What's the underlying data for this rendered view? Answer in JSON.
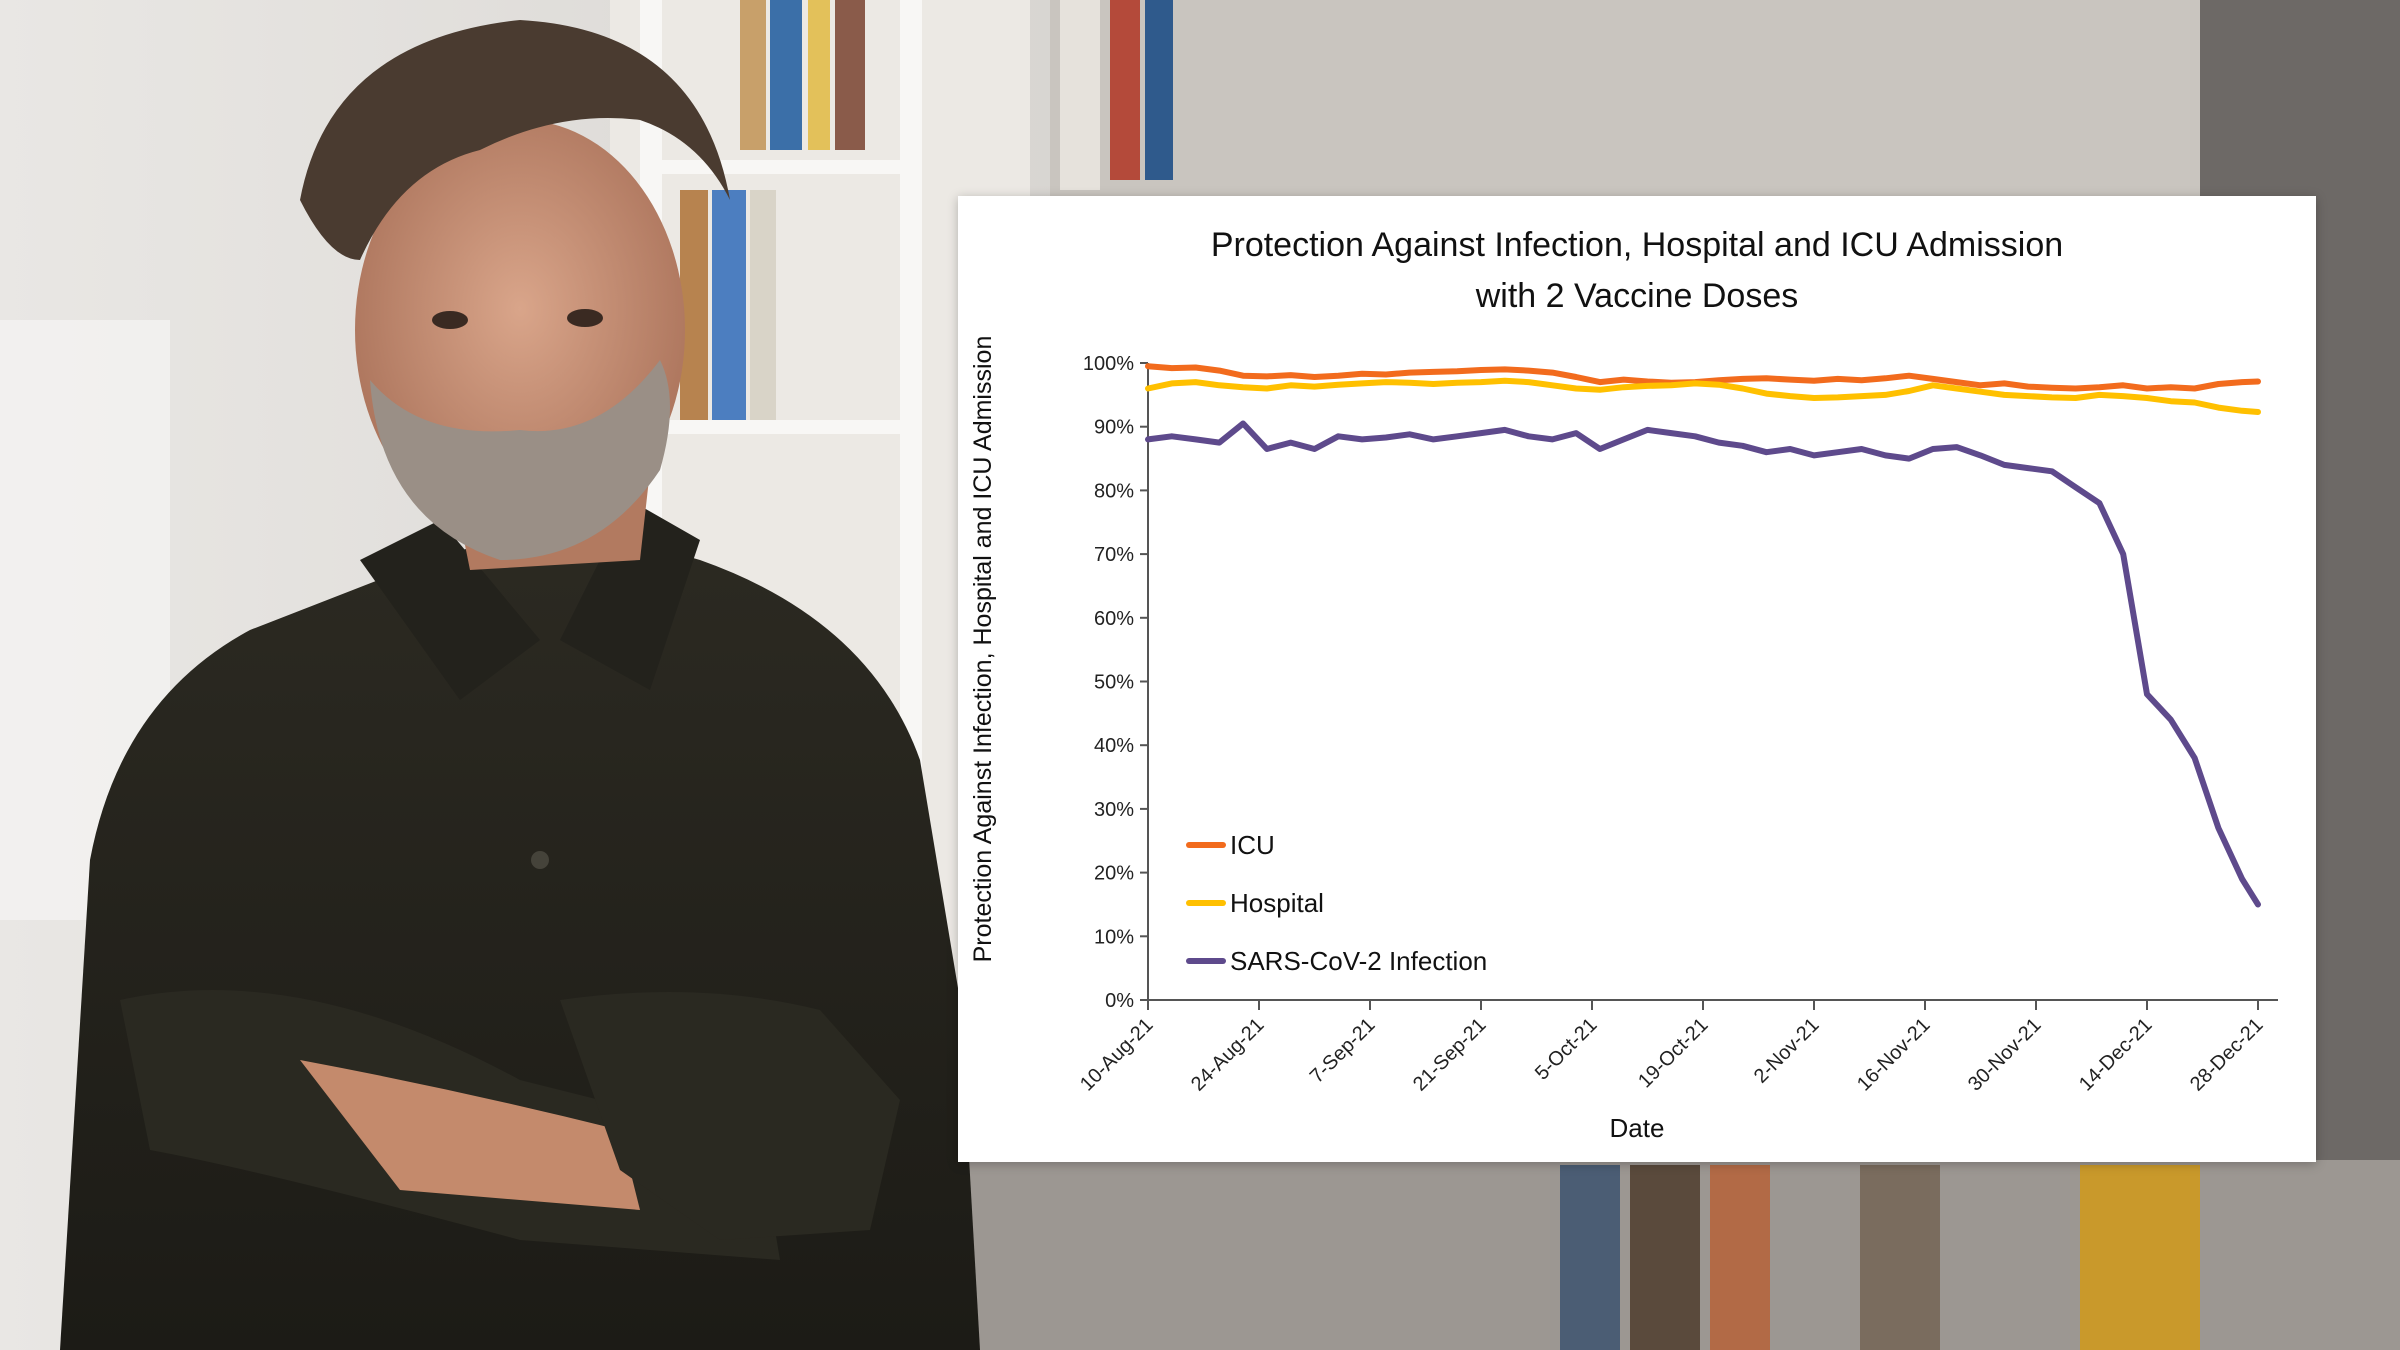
{
  "chart_data": {
    "type": "line",
    "title_lines": [
      "Protection Against Infection, Hospital and ICU Admission",
      "with 2 Vaccine Doses"
    ],
    "xlabel": "Date",
    "ylabel": "Protection Against Infection, Hospital and ICU Admission",
    "ylim": [
      0,
      100
    ],
    "yticks": [
      "0%",
      "10%",
      "20%",
      "30%",
      "40%",
      "50%",
      "60%",
      "70%",
      "80%",
      "90%",
      "100%"
    ],
    "xlim_days": [
      0,
      140
    ],
    "xticks": [
      "10-Aug-21",
      "24-Aug-21",
      "7-Sep-21",
      "21-Sep-21",
      "5-Oct-21",
      "19-Oct-21",
      "2-Nov-21",
      "16-Nov-21",
      "30-Nov-21",
      "14-Dec-21",
      "28-Dec-21"
    ],
    "x_days": [
      0,
      3,
      6,
      9,
      12,
      15,
      18,
      21,
      24,
      27,
      30,
      33,
      36,
      39,
      42,
      45,
      48,
      51,
      54,
      57,
      60,
      63,
      66,
      69,
      72,
      75,
      78,
      81,
      84,
      87,
      90,
      93,
      96,
      99,
      102,
      105,
      108,
      111,
      114,
      117,
      120,
      123,
      126,
      129,
      132,
      135,
      138,
      140
    ],
    "series": [
      {
        "name": "ICU",
        "color": "#F26B1D",
        "values": [
          99.5,
          99.2,
          99.3,
          98.8,
          98.0,
          97.9,
          98.1,
          97.8,
          98.0,
          98.3,
          98.2,
          98.5,
          98.6,
          98.7,
          98.9,
          99.0,
          98.8,
          98.5,
          97.8,
          97.0,
          97.4,
          97.1,
          96.9,
          97.0,
          97.3,
          97.5,
          97.6,
          97.4,
          97.2,
          97.5,
          97.3,
          97.6,
          98.0,
          97.5,
          97.0,
          96.5,
          96.8,
          96.3,
          96.1,
          96.0,
          96.2,
          96.5,
          96.0,
          96.2,
          96.0,
          96.7,
          97.0,
          97.1
        ]
      },
      {
        "name": "Hospital",
        "color": "#FFC000",
        "values": [
          96.0,
          96.8,
          97.0,
          96.5,
          96.2,
          96.0,
          96.5,
          96.3,
          96.6,
          96.8,
          97.0,
          96.9,
          96.7,
          96.9,
          97.0,
          97.2,
          97.0,
          96.5,
          96.0,
          95.8,
          96.2,
          96.4,
          96.5,
          96.8,
          96.6,
          96.0,
          95.2,
          94.8,
          94.5,
          94.6,
          94.8,
          95.0,
          95.6,
          96.5,
          96.0,
          95.5,
          95.0,
          94.8,
          94.6,
          94.5,
          95.0,
          94.8,
          94.5,
          94.0,
          93.8,
          93.0,
          92.5,
          92.3
        ]
      },
      {
        "name": "SARS-CoV-2 Infection",
        "color": "#5E4A8C",
        "values": [
          88.0,
          88.5,
          88.0,
          87.5,
          90.5,
          86.5,
          87.5,
          86.5,
          88.5,
          88.0,
          88.3,
          88.8,
          88.0,
          88.5,
          89.0,
          89.5,
          88.5,
          88.0,
          89.0,
          86.5,
          88.0,
          89.5,
          89.0,
          88.5,
          87.5,
          87.0,
          86.0,
          86.5,
          85.5,
          86.0,
          86.5,
          85.5,
          85.0,
          86.5,
          86.8,
          85.5,
          84.0,
          83.5,
          83.0,
          80.5,
          78.0,
          70.0,
          48.0,
          44.0,
          38.0,
          27.0,
          19.0,
          15.0
        ]
      }
    ],
    "legend_placement": "bottom-left"
  }
}
